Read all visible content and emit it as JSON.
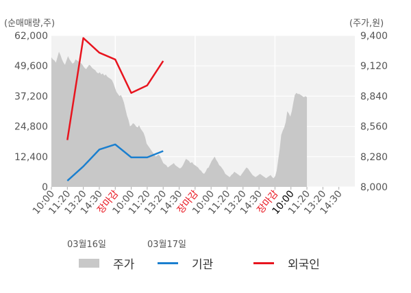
{
  "left_unit_label": "(순매매량,주)",
  "right_unit_label": "(주가,원)",
  "dates": [
    "03월16일",
    "03월17일"
  ],
  "legend": [
    {
      "label": "주가",
      "color": "#c8c8c8",
      "kind": "area"
    },
    {
      "label": "기관",
      "color": "#1a7fcf",
      "kind": "line"
    },
    {
      "label": "외국인",
      "color": "#e8141e",
      "kind": "line"
    }
  ],
  "chart_data": {
    "type": "line",
    "left_axis": {
      "ticks": [
        "62,000",
        "49,600",
        "37,200",
        "24,800",
        "12,400",
        "0"
      ],
      "ylim": [
        0,
        62000
      ]
    },
    "right_axis": {
      "ticks": [
        "9,400",
        "9,120",
        "8,840",
        "8,560",
        "8,280",
        "8,000"
      ],
      "ylim": [
        8000,
        9400
      ]
    },
    "x_tick_labels": [
      "10:00",
      "11:20",
      "13:20",
      "14:30",
      "장마감",
      "10:00",
      "11:20",
      "13:20",
      "14:30",
      "장마감",
      "10:00",
      "11:20",
      "13:20",
      "14:30",
      "장마감",
      "10:00",
      "11:20",
      "13:20",
      "14:30"
    ],
    "x_tick_colors": [
      "#555555",
      "#555555",
      "#555555",
      "#555555",
      "#e8141e",
      "#555555",
      "#555555",
      "#555555",
      "#555555",
      "#e8141e",
      "#555555",
      "#555555",
      "#555555",
      "#555555",
      "#e8141e",
      "#000000",
      "#555555",
      "#555555",
      "#555555"
    ],
    "series": [
      {
        "name": "기관",
        "color": "#1a7fcf",
        "axis": "left",
        "points": [
          [
            1,
            2500
          ],
          [
            2,
            8400
          ],
          [
            3,
            15300
          ],
          [
            4,
            17400
          ],
          [
            5,
            12100
          ],
          [
            6,
            12100
          ],
          [
            7,
            14700
          ]
        ]
      },
      {
        "name": "외국인",
        "color": "#e8141e",
        "axis": "left",
        "points": [
          [
            1,
            19200
          ],
          [
            2,
            61000
          ],
          [
            3,
            55000
          ],
          [
            4,
            52200
          ],
          [
            5,
            38500
          ],
          [
            6,
            41600
          ],
          [
            7,
            51600
          ]
        ]
      },
      {
        "name": "주가",
        "color": "#c8c8c8",
        "axis": "right",
        "kind": "area",
        "values": [
          9200,
          9180,
          9170,
          9150,
          9200,
          9250,
          9220,
          9180,
          9150,
          9130,
          9170,
          9210,
          9180,
          9160,
          9140,
          9150,
          9180,
          9170,
          9160,
          9150,
          9140,
          9120,
          9100,
          9090,
          9110,
          9130,
          9120,
          9100,
          9090,
          9080,
          9060,
          9050,
          9060,
          9040,
          9050,
          9030,
          9040,
          9020,
          9010,
          9000,
          8990,
          8960,
          8920,
          8880,
          8860,
          8840,
          8850,
          8820,
          8780,
          8720,
          8660,
          8620,
          8560,
          8570,
          8590,
          8580,
          8560,
          8550,
          8570,
          8540,
          8520,
          8500,
          8460,
          8400,
          8380,
          8360,
          8340,
          8320,
          8300,
          8280,
          8290,
          8300,
          8280,
          8250,
          8220,
          8210,
          8200,
          8180,
          8190,
          8200,
          8210,
          8220,
          8200,
          8190,
          8180,
          8170,
          8180,
          8200,
          8230,
          8260,
          8250,
          8240,
          8220,
          8230,
          8210,
          8200,
          8190,
          8180,
          8160,
          8150,
          8130,
          8120,
          8140,
          8170,
          8180,
          8210,
          8240,
          8260,
          8280,
          8250,
          8230,
          8200,
          8190,
          8170,
          8150,
          8120,
          8110,
          8100,
          8090,
          8110,
          8120,
          8140,
          8130,
          8120,
          8110,
          8100,
          8120,
          8140,
          8160,
          8180,
          8170,
          8150,
          8130,
          8110,
          8100,
          8090,
          8100,
          8110,
          8120,
          8110,
          8100,
          8090,
          8080,
          8090,
          8100,
          8110,
          8090,
          8080,
          8100,
          8150,
          8250,
          8350,
          8480,
          8520,
          8550,
          8600,
          8700,
          8680,
          8650,
          8700,
          8780,
          8850,
          8870,
          8860,
          8860,
          8850,
          8840,
          8830,
          8840,
          8830
        ]
      }
    ],
    "grid": true
  }
}
